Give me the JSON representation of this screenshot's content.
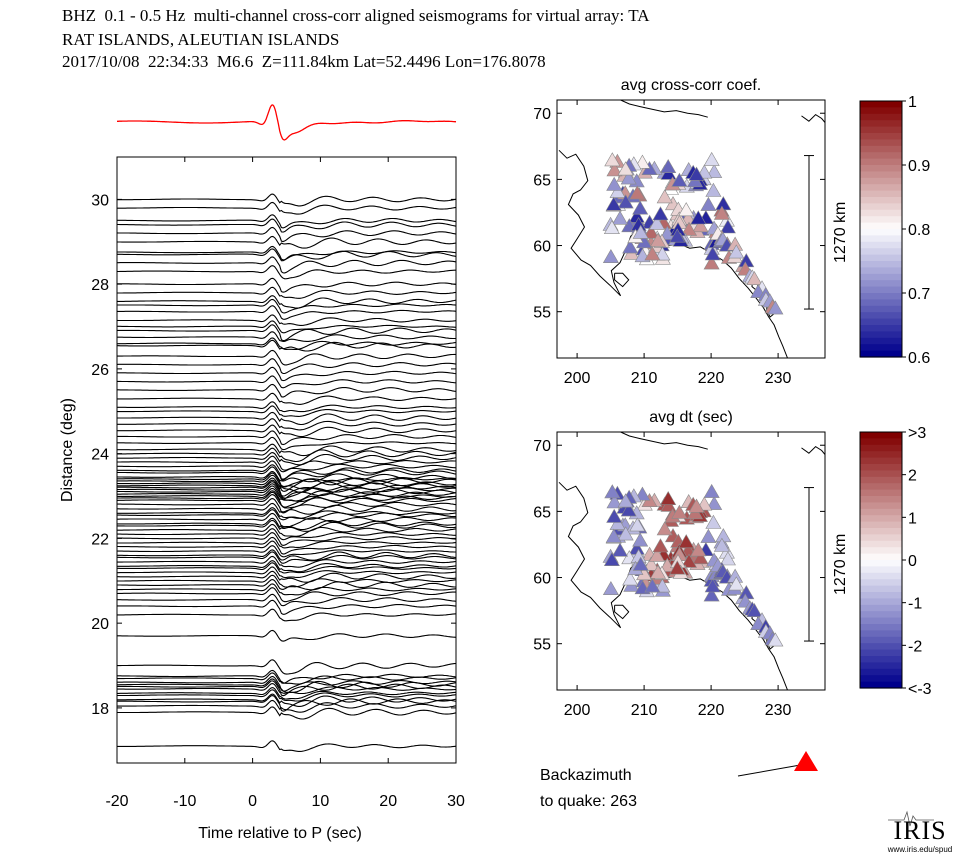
{
  "header": {
    "line1": "BHZ  0.1 - 0.5 Hz  multi-channel cross-corr aligned seismograms for virtual array: TA",
    "line2": "RAT ISLANDS, ALEUTIAN ISLANDS",
    "line3": "2017/10/08  22:34:33  M6.6  Z=111.84km Lat=52.4496 Lon=176.8078"
  },
  "chart_data": [
    {
      "type": "line",
      "name": "seismogram record section",
      "xlabel": "Time relative to P (sec)",
      "ylabel": "Distance (deg)",
      "xlim": [
        -20,
        30
      ],
      "ylim": [
        16.7,
        31.0
      ],
      "xticks": [
        -20,
        -10,
        0,
        10,
        20,
        30
      ],
      "yticks": [
        18,
        20,
        22,
        24,
        26,
        28,
        30
      ],
      "reference_trace_color": "#ff0000",
      "trace_color": "#000000",
      "trace_distances_deg": [
        17.1,
        17.9,
        18.05,
        18.15,
        18.2,
        18.3,
        18.35,
        18.45,
        18.5,
        18.55,
        18.6,
        18.7,
        18.75,
        19.0,
        19.7,
        20.2,
        20.4,
        20.55,
        20.7,
        20.8,
        20.9,
        21.0,
        21.1,
        21.2,
        21.3,
        21.35,
        21.45,
        21.55,
        21.6,
        21.7,
        21.8,
        21.9,
        22.0,
        22.1,
        22.2,
        22.3,
        22.35,
        22.45,
        22.55,
        22.6,
        22.7,
        22.8,
        22.9,
        22.95,
        23.0,
        23.05,
        23.1,
        23.15,
        23.2,
        23.25,
        23.3,
        23.35,
        23.4,
        23.45,
        23.55,
        23.6,
        23.7,
        23.8,
        23.9,
        24.0,
        24.1,
        24.25,
        24.4,
        24.55,
        24.7,
        24.85,
        25.0,
        25.1,
        25.3,
        25.5,
        25.7,
        25.9,
        26.1,
        26.3,
        26.55,
        26.6,
        26.75,
        26.9,
        27.0,
        27.15,
        27.35,
        27.5,
        27.6,
        27.8,
        28.0,
        28.3,
        28.5,
        28.7,
        28.75,
        29.0,
        29.2,
        29.4,
        29.5,
        29.8,
        30.0
      ]
    },
    {
      "type": "scatter",
      "name": "avg cross-corr coef. map",
      "title": "avg cross-corr coef.",
      "xlim": [
        197,
        237
      ],
      "ylim": [
        51.5,
        71
      ],
      "xticks": [
        200,
        210,
        220,
        230
      ],
      "yticks": [
        55,
        60,
        65,
        70
      ],
      "scalebar_label": "1270 km",
      "colorbar": {
        "min": 0.6,
        "max": 1,
        "ticks": [
          "1",
          "0.9",
          "0.8",
          "0.7",
          "0.6"
        ]
      },
      "marker": "triangle"
    },
    {
      "type": "scatter",
      "name": "avg dt map",
      "title": "avg dt (sec)",
      "xlim": [
        197,
        237
      ],
      "ylim": [
        51.5,
        71
      ],
      "xticks": [
        200,
        210,
        220,
        230
      ],
      "yticks": [
        55,
        60,
        65,
        70
      ],
      "scalebar_label": "1270 km",
      "colorbar": {
        "min": -3,
        "max": 3,
        "ticks": [
          ">3",
          "2",
          "1",
          "0",
          "-1",
          "-2",
          "<-3"
        ]
      },
      "marker": "triangle"
    }
  ],
  "backazimuth": {
    "label1": "Backazimuth",
    "label2": "to quake:  263",
    "marker_color": "#ff0000"
  },
  "logo": {
    "word": "IRIS",
    "url": "www.iris.edu/spud"
  }
}
